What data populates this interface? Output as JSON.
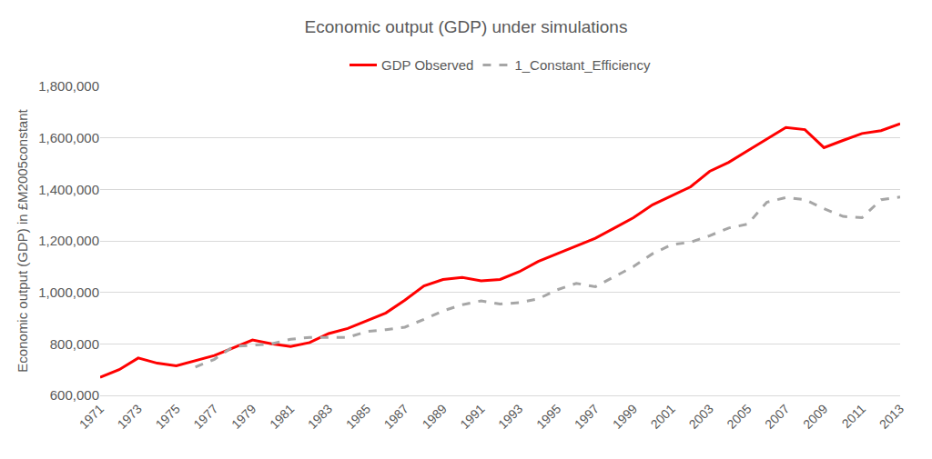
{
  "chart_data": {
    "type": "line",
    "title": "Economic output (GDP) under simulations",
    "y_label": "Economic output (GDP) in £M2005constant",
    "x": [
      1971,
      1972,
      1973,
      1974,
      1975,
      1976,
      1977,
      1978,
      1979,
      1980,
      1981,
      1982,
      1983,
      1984,
      1985,
      1986,
      1987,
      1988,
      1989,
      1990,
      1991,
      1992,
      1993,
      1994,
      1995,
      1996,
      1997,
      1998,
      1999,
      2000,
      2001,
      2002,
      2003,
      2004,
      2005,
      2006,
      2007,
      2008,
      2009,
      2010,
      2011,
      2012,
      2013
    ],
    "series": [
      {
        "name": "GDP Observed",
        "color": "#ff0000",
        "line_style": "solid",
        "values": [
          670000,
          700000,
          745000,
          725000,
          715000,
          735000,
          755000,
          785000,
          815000,
          800000,
          790000,
          805000,
          840000,
          860000,
          890000,
          920000,
          970000,
          1025000,
          1050000,
          1058000,
          1045000,
          1050000,
          1080000,
          1120000,
          1150000,
          1180000,
          1210000,
          1250000,
          1290000,
          1340000,
          1375000,
          1410000,
          1470000,
          1505000,
          1550000,
          1595000,
          1640000,
          1632000,
          1562000,
          1590000,
          1617000,
          1628000,
          1655000
        ]
      },
      {
        "name": "1_Constant_Efficiency",
        "color": "#a6a6a6",
        "line_style": "dash",
        "values": [
          null,
          null,
          null,
          null,
          null,
          710000,
          740000,
          790000,
          795000,
          800000,
          818000,
          825000,
          825000,
          825000,
          848000,
          855000,
          865000,
          895000,
          928000,
          952000,
          967000,
          955000,
          960000,
          975000,
          1010000,
          1035000,
          1022000,
          1060000,
          1100000,
          1150000,
          1185000,
          1195000,
          1220000,
          1250000,
          1265000,
          1350000,
          1368000,
          1360000,
          1325000,
          1295000,
          1290000,
          1360000,
          1370000
        ]
      }
    ],
    "xlim": [
      1971,
      2013
    ],
    "xticks": [
      1971,
      1973,
      1975,
      1977,
      1979,
      1981,
      1983,
      1985,
      1987,
      1989,
      1991,
      1993,
      1995,
      1997,
      1999,
      2001,
      2003,
      2005,
      2007,
      2009,
      2011,
      2013
    ],
    "ylim": [
      600000,
      1800000
    ],
    "yticks": [
      {
        "value": 600000,
        "label": "600,000"
      },
      {
        "value": 800000,
        "label": "800,000"
      },
      {
        "value": 1000000,
        "label": "1,000,000"
      },
      {
        "value": 1200000,
        "label": "1,200,000"
      },
      {
        "value": 1400000,
        "label": "1,400,000"
      },
      {
        "value": 1600000,
        "label": "1,600,000"
      },
      {
        "value": 1800000,
        "label": "1,800,000"
      }
    ],
    "grid": true,
    "legend": "top"
  }
}
